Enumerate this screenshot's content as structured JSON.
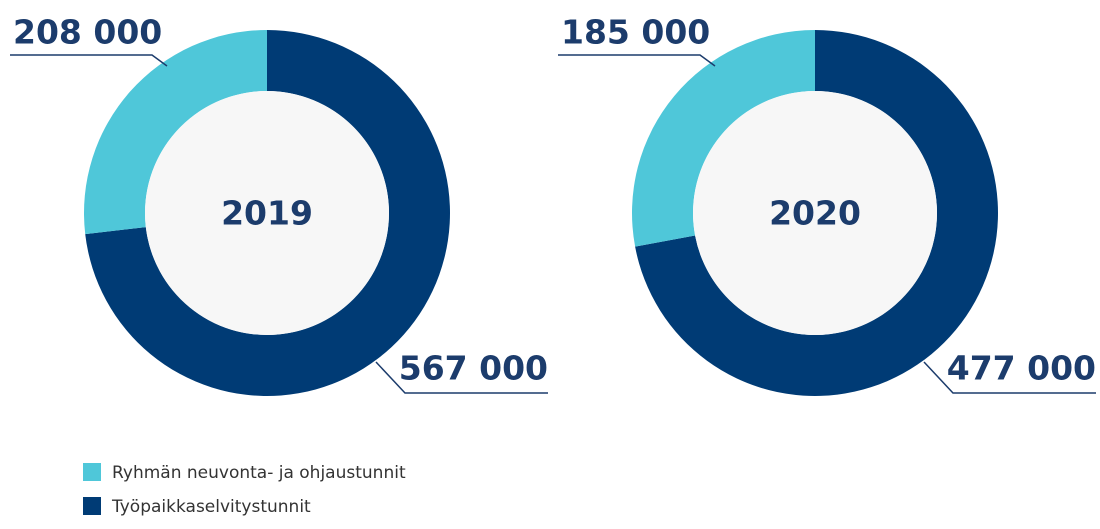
{
  "chart_data": [
    {
      "type": "pie",
      "title": "2019",
      "values": [
        208000,
        567000
      ],
      "value_labels": [
        "208 000",
        "567 000"
      ]
    },
    {
      "type": "pie",
      "title": "2020",
      "values": [
        185000,
        477000
      ],
      "value_labels": [
        "185 000",
        "477 000"
      ]
    }
  ],
  "legend": {
    "categories": [
      "Ryhmän neuvonta- ja ohjaustunnit",
      "Työpaikkaselvitystunnit"
    ],
    "colors": [
      "#4fc7d9",
      "#003b75"
    ]
  }
}
